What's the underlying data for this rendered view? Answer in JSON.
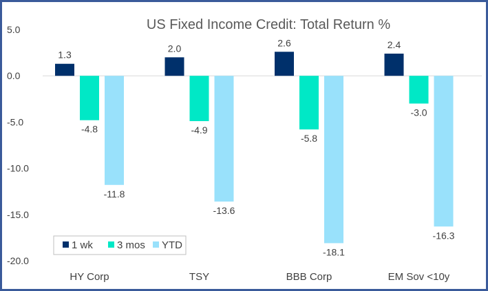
{
  "chart_data": {
    "type": "bar",
    "title": "US Fixed Income Credit: Total Return %",
    "xlabel": "",
    "ylabel": "",
    "categories": [
      "HY Corp",
      "TSY",
      "BBB Corp",
      "EM Sov <10y"
    ],
    "series": [
      {
        "name": "1 wk",
        "color": "#00306b",
        "values": [
          1.3,
          2.0,
          2.6,
          2.4
        ],
        "labels": [
          "1.3",
          "2.0",
          "2.6",
          "2.4"
        ]
      },
      {
        "name": "3 mos",
        "color": "#00e8c6",
        "values": [
          -4.8,
          -4.9,
          -5.8,
          -3.0
        ],
        "labels": [
          "-4.8",
          "-4.9",
          "-5.8",
          "-3.0"
        ]
      },
      {
        "name": "YTD",
        "color": "#99e1fb",
        "values": [
          -11.8,
          -13.6,
          -18.1,
          -16.3
        ],
        "labels": [
          "-11.8",
          "-13.6",
          "-18.1",
          "-16.3"
        ]
      }
    ],
    "ylim": [
      -20,
      5
    ],
    "yticks": [
      5,
      0,
      -5,
      -10,
      -15,
      -20
    ],
    "ytick_labels": [
      "5.0",
      "0.0",
      "-5.0",
      "-10.0",
      "-15.0",
      "-20.0"
    ],
    "grid": false,
    "zero_line_color": "#d9d9d9",
    "legend": {
      "placement": "bottom-left",
      "entries": [
        "1 wk",
        "3 mos",
        "YTD"
      ]
    }
  }
}
